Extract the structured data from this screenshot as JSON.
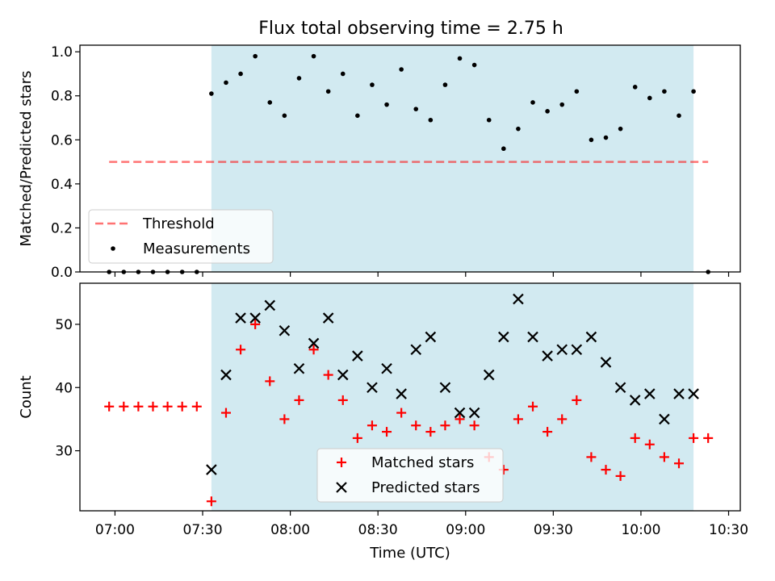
{
  "figure_title": "Flux total observing time = 2.75 h",
  "colors": {
    "shade": "#add8e6",
    "threshold": "#ff0000",
    "measurement": "#000000",
    "matched": "#ff0000",
    "predicted": "#000000"
  },
  "chart_data": [
    {
      "type": "scatter",
      "xlabel": "",
      "ylabel": "Matched/Predicted stars",
      "ylim": [
        0.0,
        1.03
      ],
      "xlim": [
        "06:48",
        "10:34"
      ],
      "yticks": [
        "0.0",
        "0.2",
        "0.4",
        "0.6",
        "0.8",
        "1.0"
      ],
      "yticks_values": [
        0.0,
        0.2,
        0.4,
        0.6,
        0.8,
        1.0
      ],
      "xticks_values": [
        "07:00",
        "07:30",
        "08:00",
        "08:30",
        "09:00",
        "09:30",
        "10:00",
        "10:30"
      ],
      "shaded_span": [
        "07:33",
        "10:18"
      ],
      "threshold": {
        "name": "Threshold",
        "value": 0.5,
        "x_range": [
          "06:58",
          "10:23"
        ],
        "style": "dashed"
      },
      "legend": {
        "placement": "lower-left",
        "entries": [
          "Threshold",
          "Measurements"
        ]
      },
      "series": [
        {
          "name": "Measurements",
          "marker": "dot",
          "x": [
            "06:58",
            "07:03",
            "07:08",
            "07:13",
            "07:18",
            "07:23",
            "07:28",
            "07:33",
            "07:38",
            "07:43",
            "07:48",
            "07:53",
            "07:58",
            "08:03",
            "08:08",
            "08:13",
            "08:18",
            "08:23",
            "08:28",
            "08:33",
            "08:38",
            "08:43",
            "08:48",
            "08:53",
            "08:58",
            "09:03",
            "09:08",
            "09:13",
            "09:18",
            "09:23",
            "09:28",
            "09:33",
            "09:38",
            "09:43",
            "09:48",
            "09:53",
            "09:58",
            "10:03",
            "10:08",
            "10:13",
            "10:18",
            "10:23"
          ],
          "y": [
            0.0,
            0.0,
            0.0,
            0.0,
            0.0,
            0.0,
            0.0,
            0.81,
            0.86,
            0.9,
            0.98,
            0.77,
            0.71,
            0.88,
            0.98,
            0.82,
            0.9,
            0.71,
            0.85,
            0.76,
            0.92,
            0.74,
            0.69,
            0.85,
            0.97,
            0.94,
            0.69,
            0.56,
            0.65,
            0.77,
            0.73,
            0.76,
            0.82,
            0.6,
            0.61,
            0.65,
            0.84,
            0.79,
            0.82,
            0.71,
            0.82,
            0.0
          ]
        }
      ]
    },
    {
      "type": "scatter",
      "xlabel": "Time (UTC)",
      "ylabel": "Count",
      "ylim": [
        20.5,
        56.5
      ],
      "xlim": [
        "06:48",
        "10:34"
      ],
      "yticks": [
        "30",
        "40",
        "50"
      ],
      "yticks_values": [
        30,
        40,
        50
      ],
      "xticks": [
        "07:00",
        "07:30",
        "08:00",
        "08:30",
        "09:00",
        "09:30",
        "10:00",
        "10:30"
      ],
      "shaded_span": [
        "07:33",
        "10:18"
      ],
      "legend": {
        "placement": "lower-center",
        "entries": [
          "Matched stars",
          "Predicted stars"
        ]
      },
      "series": [
        {
          "name": "Matched stars",
          "marker": "plus",
          "x": [
            "06:58",
            "07:03",
            "07:08",
            "07:13",
            "07:18",
            "07:23",
            "07:28",
            "07:33",
            "07:38",
            "07:43",
            "07:48",
            "07:53",
            "07:58",
            "08:03",
            "08:08",
            "08:13",
            "08:18",
            "08:23",
            "08:28",
            "08:33",
            "08:38",
            "08:43",
            "08:48",
            "08:53",
            "08:58",
            "09:03",
            "09:08",
            "09:13",
            "09:18",
            "09:23",
            "09:28",
            "09:33",
            "09:38",
            "09:43",
            "09:48",
            "09:53",
            "09:58",
            "10:03",
            "10:08",
            "10:13",
            "10:18",
            "10:23"
          ],
          "y": [
            37,
            37,
            37,
            37,
            37,
            37,
            37,
            22,
            36,
            46,
            50,
            41,
            35,
            38,
            46,
            42,
            38,
            32,
            34,
            33,
            36,
            34,
            33,
            34,
            35,
            34,
            29,
            27,
            35,
            37,
            33,
            35,
            38,
            29,
            27,
            26,
            32,
            31,
            29,
            28,
            32,
            32
          ]
        },
        {
          "name": "Predicted stars",
          "marker": "x",
          "x": [
            "07:33",
            "07:38",
            "07:43",
            "07:48",
            "07:53",
            "07:58",
            "08:03",
            "08:08",
            "08:13",
            "08:18",
            "08:23",
            "08:28",
            "08:33",
            "08:38",
            "08:43",
            "08:48",
            "08:53",
            "08:58",
            "09:03",
            "09:08",
            "09:13",
            "09:18",
            "09:23",
            "09:28",
            "09:33",
            "09:38",
            "09:43",
            "09:48",
            "09:53",
            "09:58",
            "10:03",
            "10:08",
            "10:13",
            "10:18"
          ],
          "y": [
            27,
            42,
            51,
            51,
            53,
            49,
            43,
            47,
            51,
            42,
            45,
            40,
            43,
            39,
            46,
            48,
            40,
            36,
            36,
            42,
            48,
            54,
            48,
            45,
            46,
            46,
            48,
            44,
            40,
            38,
            39,
            35,
            39,
            39
          ]
        }
      ]
    }
  ]
}
